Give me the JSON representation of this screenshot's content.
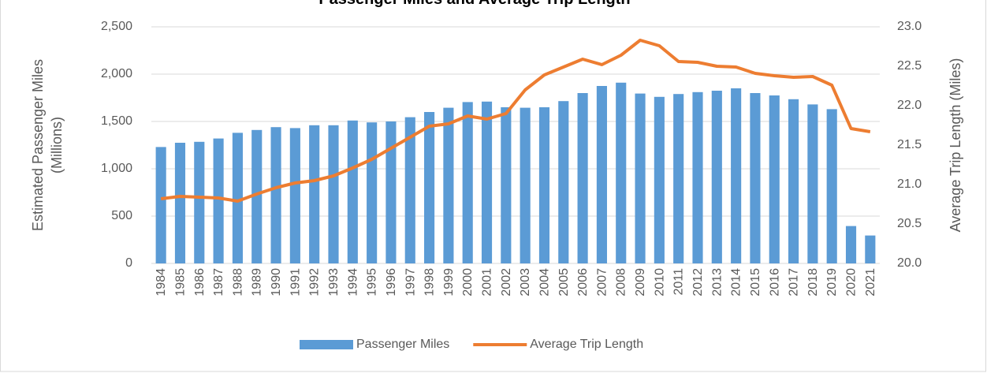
{
  "chart_data": {
    "type": "bar-line",
    "title": "Passenger Miles and Average Trip Length",
    "ylabel": [
      "Estimated Passenger Miles",
      "(Millions)"
    ],
    "y2label": "Average Trip Length (Miles)",
    "categories": [
      "1984",
      "1985",
      "1986",
      "1987",
      "1988",
      "1989",
      "1990",
      "1991",
      "1992",
      "1993",
      "1994",
      "1995",
      "1996",
      "1997",
      "1998",
      "1999",
      "2000",
      "2001",
      "2002",
      "2003",
      "2004",
      "2005",
      "2006",
      "2007",
      "2008",
      "2009",
      "2010",
      "2011",
      "2012",
      "2013",
      "2014",
      "2015",
      "2016",
      "2017",
      "2018",
      "2019",
      "2020",
      "2021"
    ],
    "series": [
      {
        "name": "Passenger Miles",
        "type": "bar",
        "color": "#5b9bd5",
        "values": [
          1230,
          1275,
          1285,
          1320,
          1380,
          1410,
          1440,
          1430,
          1460,
          1460,
          1510,
          1490,
          1500,
          1545,
          1600,
          1645,
          1705,
          1710,
          1650,
          1645,
          1650,
          1715,
          1800,
          1875,
          1910,
          1795,
          1760,
          1790,
          1810,
          1825,
          1850,
          1800,
          1775,
          1735,
          1680,
          1630,
          395,
          295
        ]
      },
      {
        "name": "Average Trip Length",
        "type": "line",
        "axis": "y2",
        "color": "#ed7d31",
        "values": [
          20.82,
          20.85,
          20.84,
          20.83,
          20.79,
          20.88,
          20.96,
          21.02,
          21.05,
          21.11,
          21.21,
          21.32,
          21.46,
          21.6,
          21.74,
          21.77,
          21.87,
          21.83,
          21.9,
          22.2,
          22.39,
          22.49,
          22.59,
          22.52,
          22.64,
          22.83,
          22.76,
          22.56,
          22.55,
          22.5,
          22.49,
          22.41,
          22.38,
          22.36,
          22.37,
          22.26,
          21.71,
          21.67
        ]
      }
    ],
    "ylim": [
      0,
      2500
    ],
    "yticks": [
      0,
      500,
      {
        "value": 1000,
        "label": "1,000"
      },
      {
        "value": 1500,
        "label": "1,500"
      },
      {
        "value": 2000,
        "label": "2,000"
      },
      {
        "value": 2500,
        "label": "2,500"
      }
    ],
    "y2lim": [
      20,
      23
    ],
    "y2ticks": [
      {
        "value": 20,
        "label": "20.0"
      },
      20.5,
      {
        "value": 21,
        "label": "21.0"
      },
      21.5,
      {
        "value": 22,
        "label": "22.0"
      },
      22.5,
      {
        "value": 23,
        "label": "23.0"
      }
    ],
    "grid": true,
    "legend": "bottom"
  }
}
